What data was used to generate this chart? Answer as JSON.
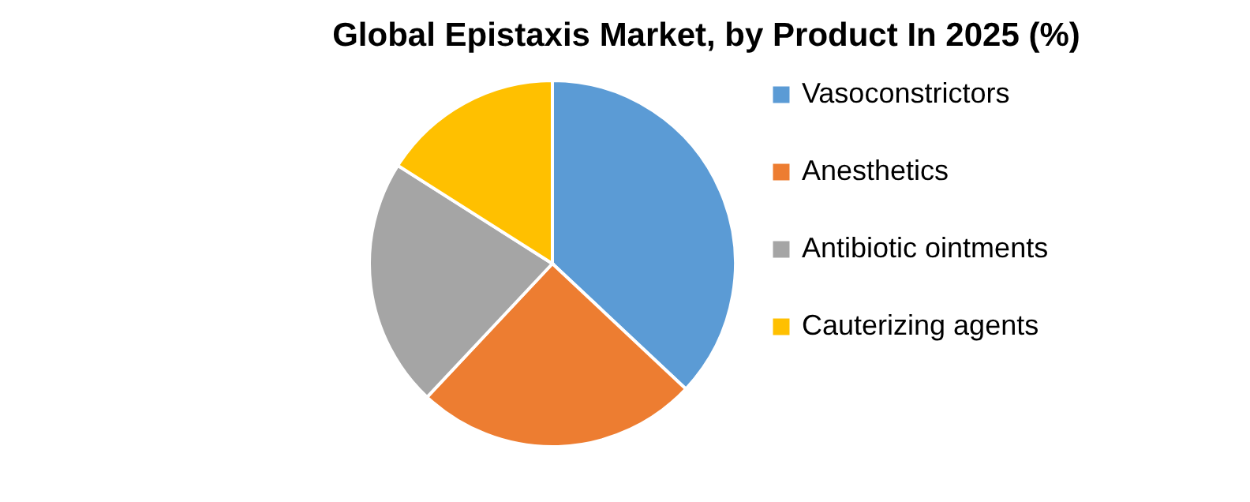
{
  "chart_data": {
    "type": "pie",
    "title": "Global Epistaxis Market, by Product In 2025 (%)",
    "categories": [
      "Vasoconstrictors",
      "Anesthetics",
      "Antibiotic ointments",
      "Cauterizing agents"
    ],
    "values": [
      37,
      25,
      22,
      16
    ],
    "colors": [
      "#5b9bd5",
      "#ed7d31",
      "#a5a5a5",
      "#ffc000"
    ],
    "legend": "right"
  }
}
